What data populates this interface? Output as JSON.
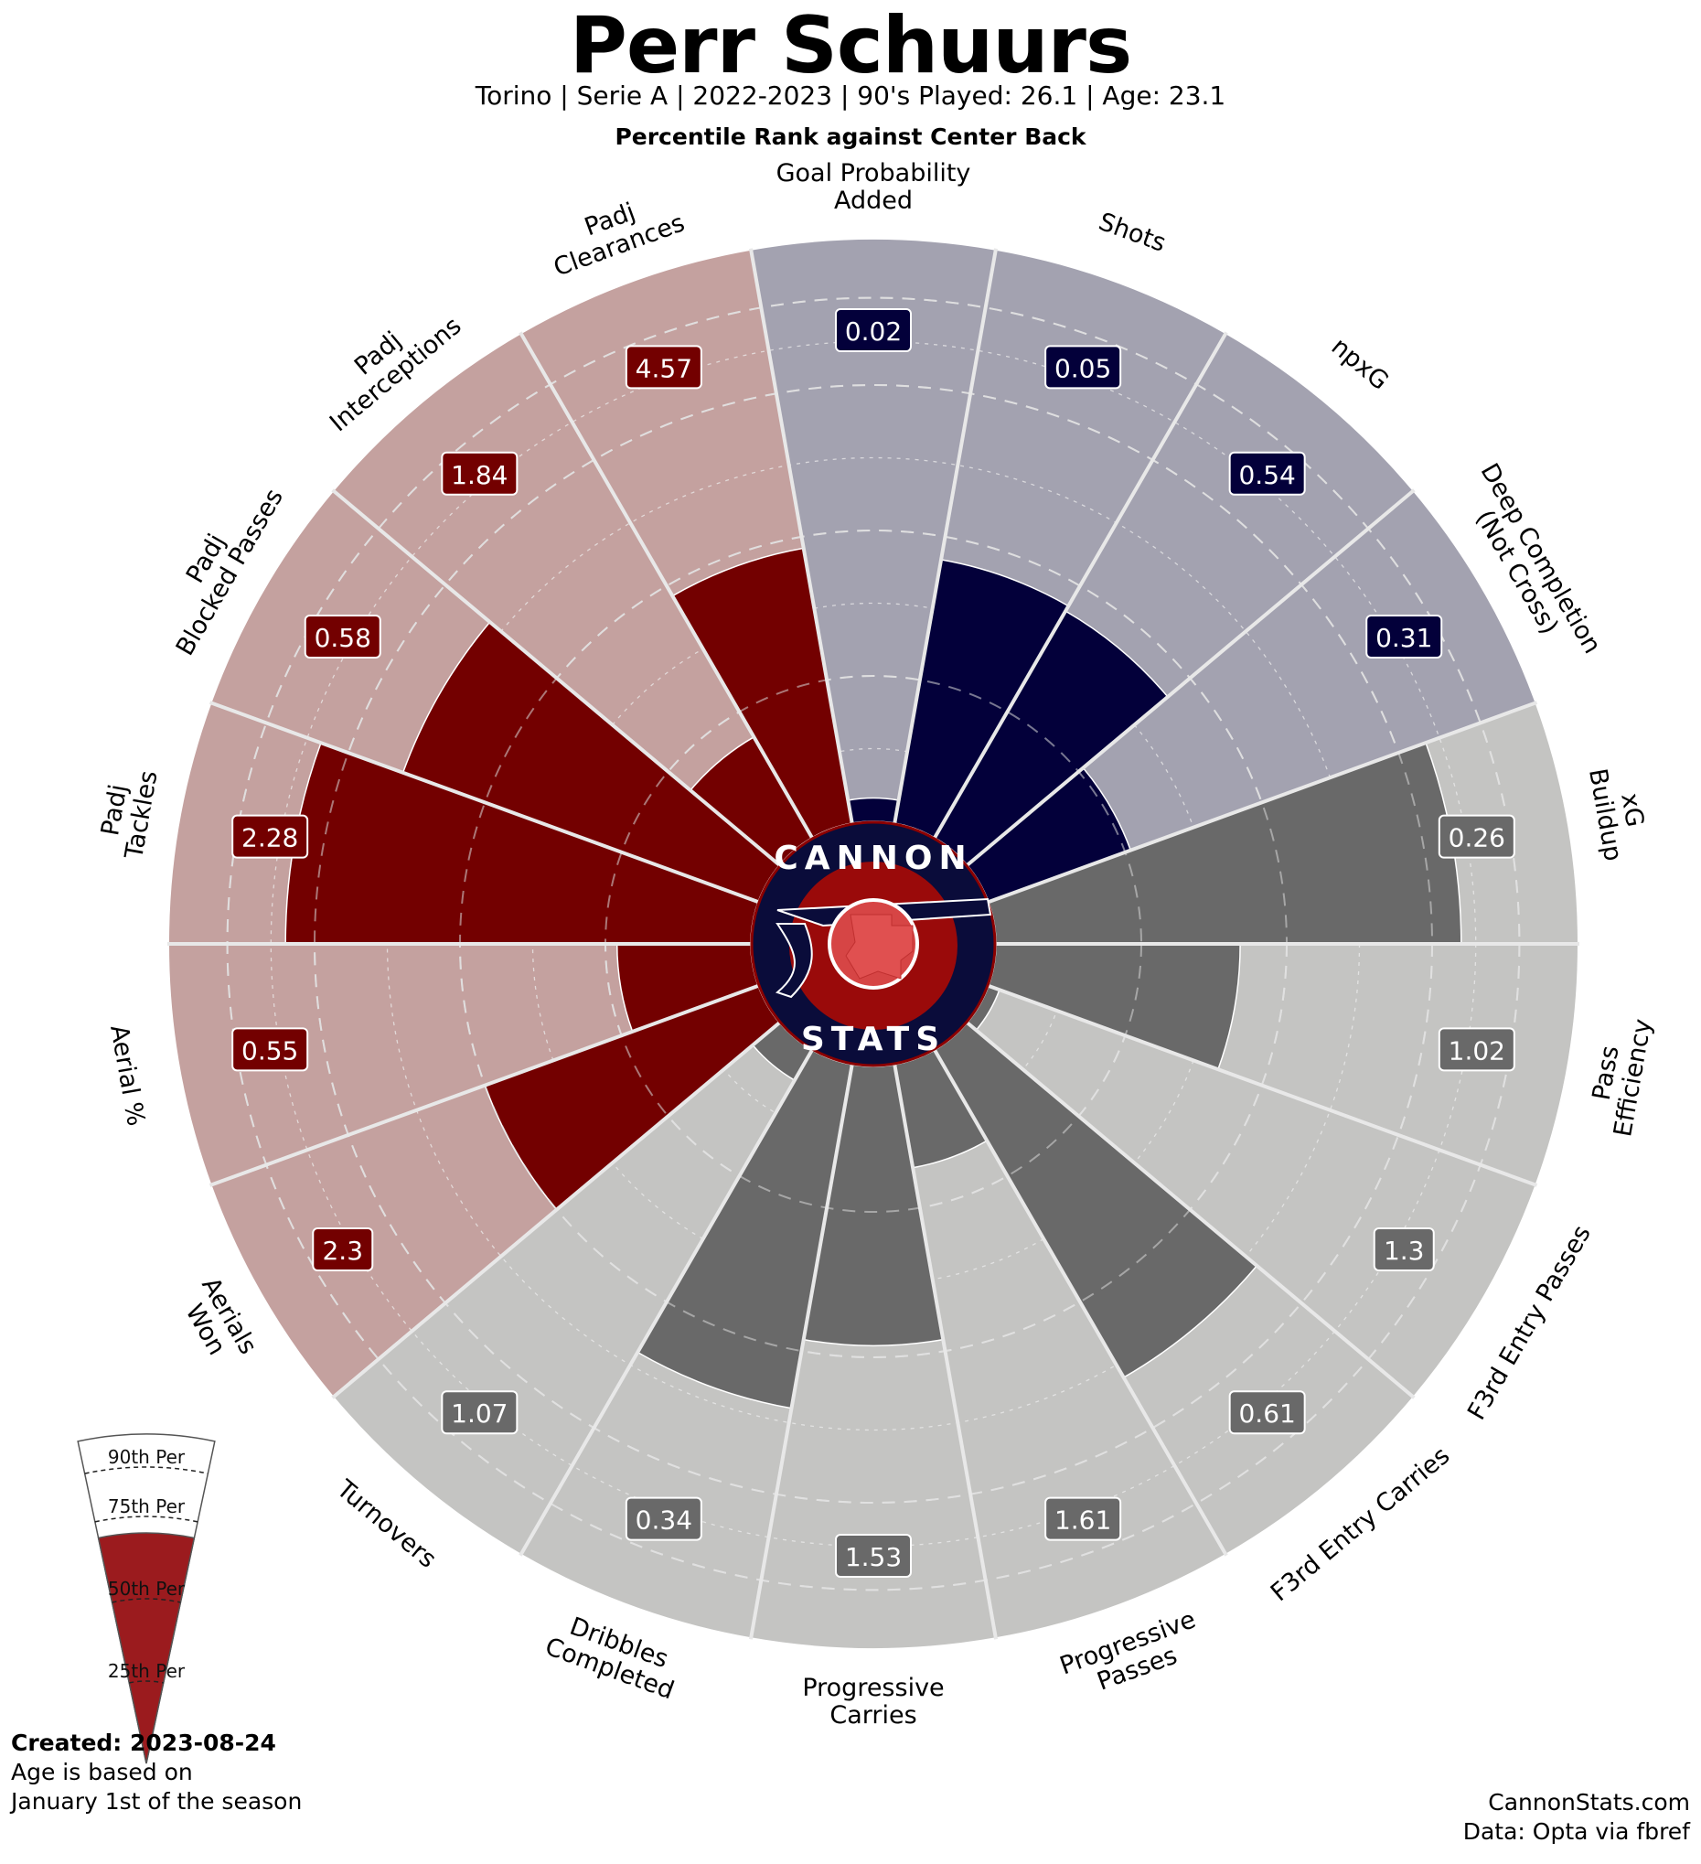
{
  "header": {
    "title": "Perr Schuurs",
    "subtitle": "Torino  | Serie A | 2022-2023 | 90's Played: 26.1 | Age: 23.1",
    "comparison": "Percentile Rank against Center Back"
  },
  "logo": {
    "top_text": "CANNON",
    "bottom_text": "STATS"
  },
  "legend": {
    "labels": [
      "90th Per",
      "75th Per",
      "50th Per",
      "25th Per"
    ],
    "fill_percentile": 70
  },
  "footer": {
    "created": "Created: 2023-08-24",
    "note_line1": "Age is based on",
    "note_line2": "January 1st of the season",
    "site": "CannonStats.com",
    "source": "Data: Opta via fbref"
  },
  "colors": {
    "attack_bar": "#03003a",
    "attack_bg": "#a3a2b0",
    "possession_bar": "#696969",
    "possession_bg": "#c4c4c2",
    "defense_bar": "#730000",
    "defense_bg": "#c4a19f",
    "legend_fill": "#9b1b1e"
  },
  "chart_data": {
    "type": "radar-percentile",
    "title": "Perr Schuurs",
    "rlim": [
      0,
      100
    ],
    "metrics": [
      {
        "label": "Goal Probability\nAdded",
        "value": "0.02",
        "percentile": 4,
        "group": "attack"
      },
      {
        "label": "Shots",
        "value": "0.05",
        "percentile": 46,
        "group": "attack"
      },
      {
        "label": "npxG",
        "value": "0.54",
        "percentile": 45,
        "group": "attack"
      },
      {
        "label": "Deep Completion\n(Not Cross)",
        "value": "0.31",
        "percentile": 26,
        "group": "attack"
      },
      {
        "label": "xG\nBuildup",
        "value": "0.26",
        "percentile": 80,
        "group": "possession"
      },
      {
        "label": "Pass\nEfficiency",
        "value": "1.02",
        "percentile": 42,
        "group": "possession"
      },
      {
        "label": "F3rd Entry Passes",
        "value": "1.3",
        "percentile": 2,
        "group": "possession"
      },
      {
        "label": "F3rd Entry Carries",
        "value": "0.61",
        "percentile": 65,
        "group": "possession"
      },
      {
        "label": "Progressive\nPasses",
        "value": "1.61",
        "percentile": 18,
        "group": "possession"
      },
      {
        "label": "Progressive\nCarries",
        "value": "1.53",
        "percentile": 48,
        "group": "possession"
      },
      {
        "label": "Dribbles\nCompleted",
        "value": "0.34",
        "percentile": 60,
        "group": "possession"
      },
      {
        "label": "Turnovers",
        "value": "1.07",
        "percentile": 6,
        "group": "possession"
      },
      {
        "label": "Aerials\nWon",
        "value": "2.3",
        "percentile": 50,
        "group": "defense"
      },
      {
        "label": "Aerial %",
        "value": "0.55",
        "percentile": 23,
        "group": "defense"
      },
      {
        "label": "Padj\nTackles",
        "value": "2.28",
        "percentile": 80,
        "group": "defense"
      },
      {
        "label": "Padj\nBlocked Passes",
        "value": "0.58",
        "percentile": 65,
        "group": "defense"
      },
      {
        "label": "Padj\nInterceptions",
        "value": "1.84",
        "percentile": 20,
        "group": "defense"
      },
      {
        "label": "Padj\nClearances",
        "value": "4.57",
        "percentile": 48,
        "group": "defense"
      }
    ],
    "gridlines_dashed": [
      25,
      50,
      75,
      90
    ],
    "gridlines_dotted": [
      12.5,
      37.5,
      62.5,
      82.5
    ]
  }
}
